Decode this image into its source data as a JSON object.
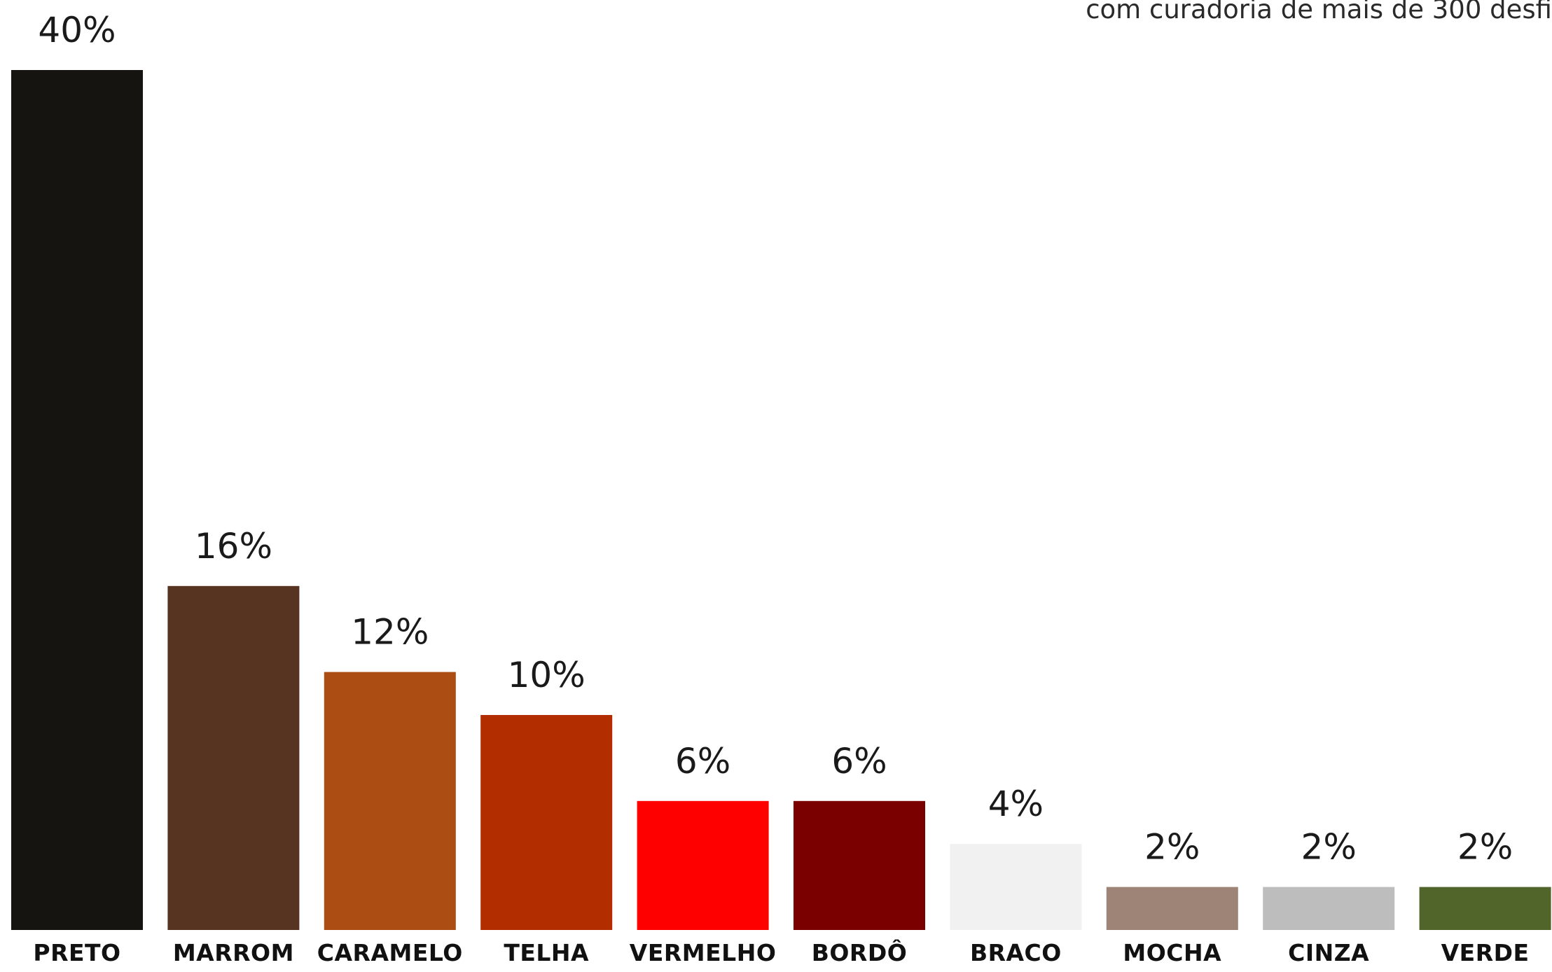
{
  "chart_data": {
    "type": "bar",
    "title": "",
    "subtitle": "com curadoria de mais de 300 desfi",
    "xlabel": "",
    "ylabel": "",
    "ylim": [
      0,
      40
    ],
    "grid": false,
    "legend": "none",
    "categories": [
      "PRETO",
      "MARROM",
      "CARAMELO",
      "TELHA",
      "VERMELHO",
      "BORDÔ",
      "BRACO",
      "MOCHA",
      "CINZA",
      "VERDE"
    ],
    "values": [
      40,
      16,
      12,
      10,
      6,
      6,
      4,
      2,
      2,
      2
    ],
    "value_labels": [
      "40%",
      "16%",
      "12%",
      "10%",
      "6%",
      "6%",
      "4%",
      "2%",
      "2%",
      "2%"
    ],
    "colors": [
      "#151410",
      "#573322",
      "#ac4d14",
      "#b22e00",
      "#ff0000",
      "#7a0000",
      "#f1f1f1",
      "#9e8477",
      "#bdbdbd",
      "#51652b"
    ]
  }
}
